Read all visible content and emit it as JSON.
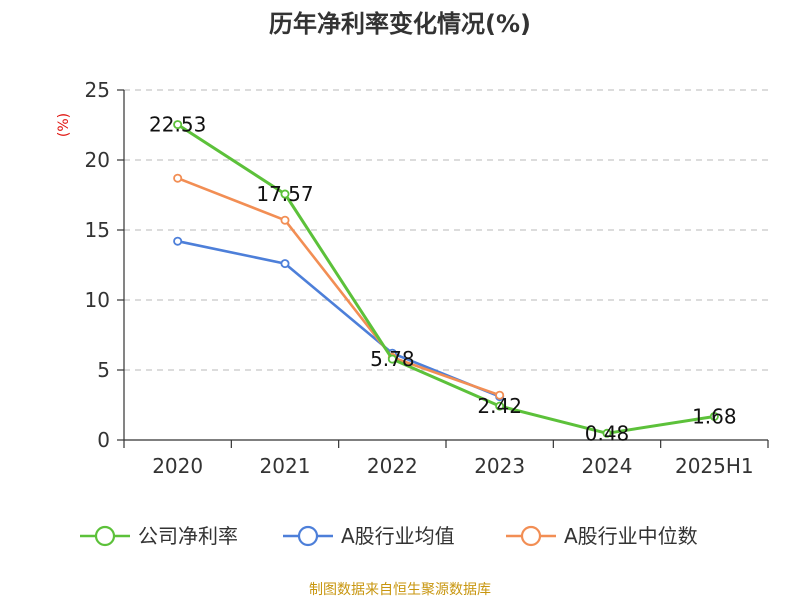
{
  "chart_data": {
    "type": "line",
    "title": "历年净利率变化情况(%)",
    "ylabel": "(%)",
    "xlabel": "",
    "categories": [
      "2020",
      "2021",
      "2022",
      "2023",
      "2024",
      "2025H1"
    ],
    "ylim": [
      0,
      25
    ],
    "yticks": [
      "0",
      "5",
      "10",
      "15",
      "20",
      "25"
    ],
    "grid": true,
    "legend_position": "bottom",
    "series": [
      {
        "name": "公司净利率",
        "color": "#5cc13a",
        "values": [
          22.53,
          17.57,
          5.78,
          2.42,
          0.48,
          1.68
        ],
        "labels": [
          "22.53",
          "17.57",
          "5.78",
          "2.42",
          "0.48",
          "1.68"
        ]
      },
      {
        "name": "A股行业均值",
        "color": "#4d7fd9",
        "values": [
          14.2,
          12.6,
          6.2,
          3.1,
          null,
          null
        ]
      },
      {
        "name": "A股行业中位数",
        "color": "#f28e54",
        "values": [
          18.7,
          15.7,
          5.9,
          3.2,
          null,
          null
        ]
      }
    ]
  },
  "source": "制图数据来自恒生聚源数据库"
}
